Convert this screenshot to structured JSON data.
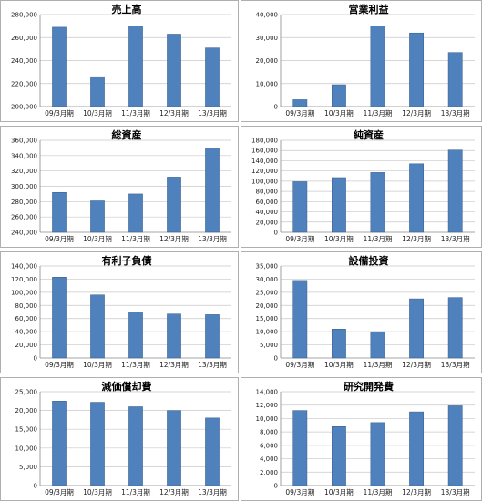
{
  "chart_data": [
    {
      "type": "bar",
      "title": "売上高",
      "categories": [
        "09/3月期",
        "10/3月期",
        "11/3月期",
        "12/3月期",
        "13/3月期"
      ],
      "values": [
        269000,
        226000,
        270000,
        263000,
        251000
      ],
      "ylim": [
        200000,
        280000
      ],
      "yticks": [
        200000,
        220000,
        240000,
        260000,
        280000
      ],
      "ytick_labels": [
        "200,000",
        "220,000",
        "240,000",
        "260,000",
        "280,000"
      ],
      "grid": true,
      "bar_color": "#4f81bd"
    },
    {
      "type": "bar",
      "title": "営業利益",
      "categories": [
        "09/3月期",
        "10/3月期",
        "11/3月期",
        "12/3月期",
        "13/3月期"
      ],
      "values": [
        3000,
        9500,
        35000,
        32000,
        23500
      ],
      "ylim": [
        0,
        40000
      ],
      "yticks": [
        0,
        10000,
        20000,
        30000,
        40000
      ],
      "ytick_labels": [
        "0",
        "10,000",
        "20,000",
        "30,000",
        "40,000"
      ],
      "grid": true,
      "bar_color": "#4f81bd"
    },
    {
      "type": "bar",
      "title": "総資産",
      "categories": [
        "09/3月期",
        "10/3月期",
        "11/3月期",
        "12/3月期",
        "13/3月期"
      ],
      "values": [
        292000,
        281000,
        290000,
        312000,
        350000
      ],
      "ylim": [
        240000,
        360000
      ],
      "yticks": [
        240000,
        260000,
        280000,
        300000,
        320000,
        340000,
        360000
      ],
      "ytick_labels": [
        "240,000",
        "260,000",
        "280,000",
        "300,000",
        "320,000",
        "340,000",
        "360,000"
      ],
      "grid": true,
      "bar_color": "#4f81bd"
    },
    {
      "type": "bar",
      "title": "純資産",
      "categories": [
        "09/3月期",
        "10/3月期",
        "11/3月期",
        "12/3月期",
        "13/3月期"
      ],
      "values": [
        99000,
        107000,
        117000,
        134000,
        161000
      ],
      "ylim": [
        0,
        180000
      ],
      "yticks": [
        0,
        20000,
        40000,
        60000,
        80000,
        100000,
        120000,
        140000,
        160000,
        180000
      ],
      "ytick_labels": [
        "0",
        "20,000",
        "40,000",
        "60,000",
        "80,000",
        "100,000",
        "120,000",
        "140,000",
        "160,000",
        "180,000"
      ],
      "grid": true,
      "bar_color": "#4f81bd"
    },
    {
      "type": "bar",
      "title": "有利子負債",
      "categories": [
        "09/3月期",
        "10/3月期",
        "11/3月期",
        "12/3月期",
        "13/3月期"
      ],
      "values": [
        123000,
        96000,
        70000,
        67000,
        66000
      ],
      "ylim": [
        0,
        140000
      ],
      "yticks": [
        0,
        20000,
        40000,
        60000,
        80000,
        100000,
        120000,
        140000
      ],
      "ytick_labels": [
        "0",
        "20,000",
        "40,000",
        "60,000",
        "80,000",
        "100,000",
        "120,000",
        "140,000"
      ],
      "grid": true,
      "bar_color": "#4f81bd"
    },
    {
      "type": "bar",
      "title": "設備投資",
      "categories": [
        "09/3月期",
        "10/3月期",
        "11/3月期",
        "12/3月期",
        "13/3月期"
      ],
      "values": [
        29500,
        11000,
        10000,
        22500,
        23000
      ],
      "ylim": [
        0,
        35000
      ],
      "yticks": [
        0,
        5000,
        10000,
        15000,
        20000,
        25000,
        30000,
        35000
      ],
      "ytick_labels": [
        "0",
        "5,000",
        "10,000",
        "15,000",
        "20,000",
        "25,000",
        "30,000",
        "35,000"
      ],
      "grid": true,
      "bar_color": "#4f81bd"
    },
    {
      "type": "bar",
      "title": "減価償却費",
      "categories": [
        "09/3月期",
        "10/3月期",
        "11/3月期",
        "12/3月期",
        "13/3月期"
      ],
      "values": [
        22500,
        22200,
        21000,
        20000,
        18000
      ],
      "ylim": [
        0,
        25000
      ],
      "yticks": [
        0,
        5000,
        10000,
        15000,
        20000,
        25000
      ],
      "ytick_labels": [
        "0",
        "5,000",
        "10,000",
        "15,000",
        "20,000",
        "25,000"
      ],
      "grid": true,
      "bar_color": "#4f81bd"
    },
    {
      "type": "bar",
      "title": "研究開発費",
      "categories": [
        "09/3月期",
        "10/3月期",
        "11/3月期",
        "12/3月期",
        "13/3月期"
      ],
      "values": [
        11200,
        8800,
        9400,
        11000,
        11900
      ],
      "ylim": [
        0,
        14000
      ],
      "yticks": [
        0,
        2000,
        4000,
        6000,
        8000,
        10000,
        12000,
        14000
      ],
      "ytick_labels": [
        "0",
        "2,000",
        "4,000",
        "6,000",
        "8,000",
        "10,000",
        "12,000",
        "14,000"
      ],
      "grid": true,
      "bar_color": "#4f81bd"
    }
  ]
}
